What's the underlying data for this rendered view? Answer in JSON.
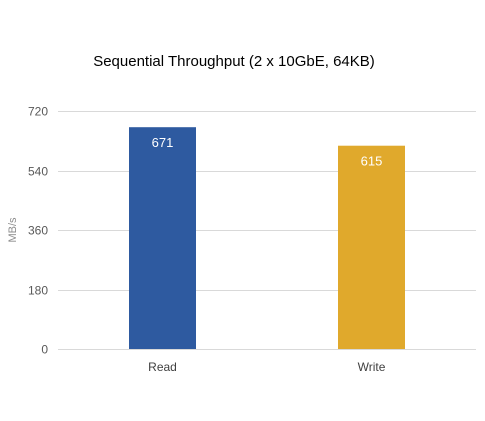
{
  "chart_data": {
    "type": "bar",
    "title": "Sequential Throughput (2 x 10GbE, 64KB)",
    "ylabel": "MB/s",
    "xlabel": "",
    "categories": [
      "Read",
      "Write"
    ],
    "values": [
      671,
      615
    ],
    "data_labels": [
      "671",
      "615"
    ],
    "colors": [
      "#2e5aa0",
      "#e0a92c"
    ],
    "ylim": [
      0,
      720
    ],
    "yticks": [
      0,
      180,
      360,
      540,
      720
    ],
    "ytick_labels": [
      "0",
      "180",
      "360",
      "540",
      "720"
    ],
    "grid": true,
    "legend": "none"
  }
}
